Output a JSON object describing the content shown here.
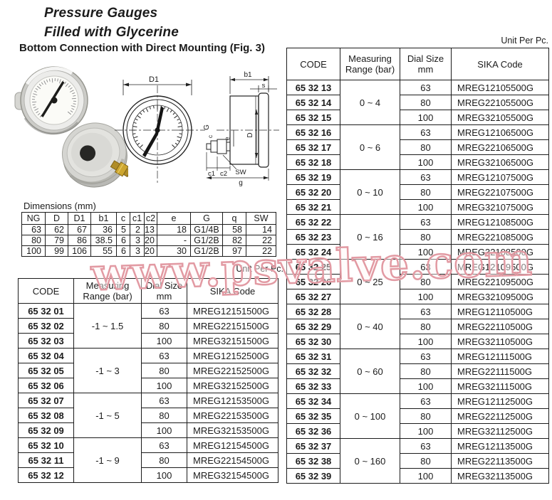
{
  "page": {
    "title_line1": "Pressure Gauges",
    "title_line2": "Filled with Glycerine",
    "subtitle": "Bottom Connection with Direct Mounting (Fig. 3)",
    "unit_note": "Unit Per Pc.",
    "watermark": "www.psvalve.com",
    "watermark_color": "#e29aa3"
  },
  "drawing": {
    "labels": {
      "d1": "D1",
      "b1": "b1",
      "s": "s",
      "thread_g": "G",
      "dial_d": "D",
      "offset_e": "e",
      "c": "c",
      "c1": "c1",
      "c2": "c2",
      "sw": "SW",
      "depth_g": "g"
    }
  },
  "dimensions_table": {
    "label": "Dimensions (mm)",
    "headers": [
      "NG",
      "D",
      "D1",
      "b1",
      "c",
      "c1",
      "c2",
      "e",
      "G",
      "q",
      "SW"
    ],
    "rows": [
      [
        "63",
        "62",
        "67",
        "36",
        "5",
        "2",
        "13",
        "18",
        "G1/4B",
        "58",
        "14"
      ],
      [
        "80",
        "79",
        "86",
        "38.5",
        "6",
        "3",
        "20",
        "-",
        "G1/2B",
        "82",
        "22"
      ],
      [
        "100",
        "99",
        "106",
        "55",
        "6",
        "3",
        "20",
        "30",
        "G1/2B",
        "97",
        "22"
      ]
    ]
  },
  "code_table_headers": {
    "code": "CODE",
    "range_line1": "Measuring",
    "range_line2": "Range (bar)",
    "dial_line1": "Dial Size",
    "dial_line2": "mm",
    "sika": "SIKA Code"
  },
  "left_table": {
    "groups": [
      {
        "range": "-1 ~ 1.5",
        "rows": [
          {
            "code": "65 32 01",
            "dial": "63",
            "sika": "MREG12151500G"
          },
          {
            "code": "65 32 02",
            "dial": "80",
            "sika": "MREG22151500G"
          },
          {
            "code": "65 32 03",
            "dial": "100",
            "sika": "MREG32151500G"
          }
        ]
      },
      {
        "range": "-1 ~ 3",
        "rows": [
          {
            "code": "65 32 04",
            "dial": "63",
            "sika": "MREG12152500G"
          },
          {
            "code": "65 32 05",
            "dial": "80",
            "sika": "MREG22152500G"
          },
          {
            "code": "65 32 06",
            "dial": "100",
            "sika": "MREG32152500G"
          }
        ]
      },
      {
        "range": "-1 ~ 5",
        "rows": [
          {
            "code": "65 32 07",
            "dial": "63",
            "sika": "MREG12153500G"
          },
          {
            "code": "65 32 08",
            "dial": "80",
            "sika": "MREG22153500G"
          },
          {
            "code": "65 32 09",
            "dial": "100",
            "sika": "MREG32153500G"
          }
        ]
      },
      {
        "range": "-1 ~ 9",
        "rows": [
          {
            "code": "65 32 10",
            "dial": "63",
            "sika": "MREG12154500G"
          },
          {
            "code": "65 32 11",
            "dial": "80",
            "sika": "MREG22154500G"
          },
          {
            "code": "65 32 12",
            "dial": "100",
            "sika": "MREG32154500G"
          }
        ]
      }
    ]
  },
  "right_table": {
    "groups": [
      {
        "range": "0 ~ 4",
        "rows": [
          {
            "code": "65 32 13",
            "dial": "63",
            "sika": "MREG12105500G"
          },
          {
            "code": "65 32 14",
            "dial": "80",
            "sika": "MREG22105500G"
          },
          {
            "code": "65 32 15",
            "dial": "100",
            "sika": "MREG32105500G"
          }
        ]
      },
      {
        "range": "0 ~ 6",
        "rows": [
          {
            "code": "65 32 16",
            "dial": "63",
            "sika": "MREG12106500G"
          },
          {
            "code": "65 32 17",
            "dial": "80",
            "sika": "MREG22106500G"
          },
          {
            "code": "65 32 18",
            "dial": "100",
            "sika": "MREG32106500G"
          }
        ]
      },
      {
        "range": "0 ~ 10",
        "rows": [
          {
            "code": "65 32 19",
            "dial": "63",
            "sika": "MREG12107500G"
          },
          {
            "code": "65 32 20",
            "dial": "80",
            "sika": "MREG22107500G"
          },
          {
            "code": "65 32 21",
            "dial": "100",
            "sika": "MREG32107500G"
          }
        ]
      },
      {
        "range": "0 ~ 16",
        "rows": [
          {
            "code": "65 32 22",
            "dial": "63",
            "sika": "MREG12108500G"
          },
          {
            "code": "65 32 23",
            "dial": "80",
            "sika": "MREG22108500G"
          },
          {
            "code": "65 32 24",
            "dial": "100",
            "sika": "MREG32108500G"
          }
        ]
      },
      {
        "range": "0 ~ 25",
        "rows": [
          {
            "code": "65 32 25",
            "dial": "63",
            "sika": "MREG12109500G"
          },
          {
            "code": "65 32 26",
            "dial": "80",
            "sika": "MREG22109500G"
          },
          {
            "code": "65 32 27",
            "dial": "100",
            "sika": "MREG32109500G"
          }
        ]
      },
      {
        "range": "0 ~ 40",
        "rows": [
          {
            "code": "65 32 28",
            "dial": "63",
            "sika": "MREG12110500G"
          },
          {
            "code": "65 32 29",
            "dial": "80",
            "sika": "MREG22110500G"
          },
          {
            "code": "65 32 30",
            "dial": "100",
            "sika": "MREG32110500G"
          }
        ]
      },
      {
        "range": "0 ~ 60",
        "rows": [
          {
            "code": "65 32 31",
            "dial": "63",
            "sika": "MREG12111500G"
          },
          {
            "code": "65 32 32",
            "dial": "80",
            "sika": "MREG22111500G"
          },
          {
            "code": "65 32 33",
            "dial": "100",
            "sika": "MREG32111500G"
          }
        ]
      },
      {
        "range": "0 ~ 100",
        "rows": [
          {
            "code": "65 32 34",
            "dial": "63",
            "sika": "MREG12112500G"
          },
          {
            "code": "65 32 35",
            "dial": "80",
            "sika": "MREG22112500G"
          },
          {
            "code": "65 32 36",
            "dial": "100",
            "sika": "MREG32112500G"
          }
        ]
      },
      {
        "range": "0 ~ 160",
        "rows": [
          {
            "code": "65 32 37",
            "dial": "63",
            "sika": "MREG12113500G"
          },
          {
            "code": "65 32 38",
            "dial": "80",
            "sika": "MREG22113500G"
          },
          {
            "code": "65 32 39",
            "dial": "100",
            "sika": "MREG32113500G"
          }
        ]
      }
    ]
  }
}
